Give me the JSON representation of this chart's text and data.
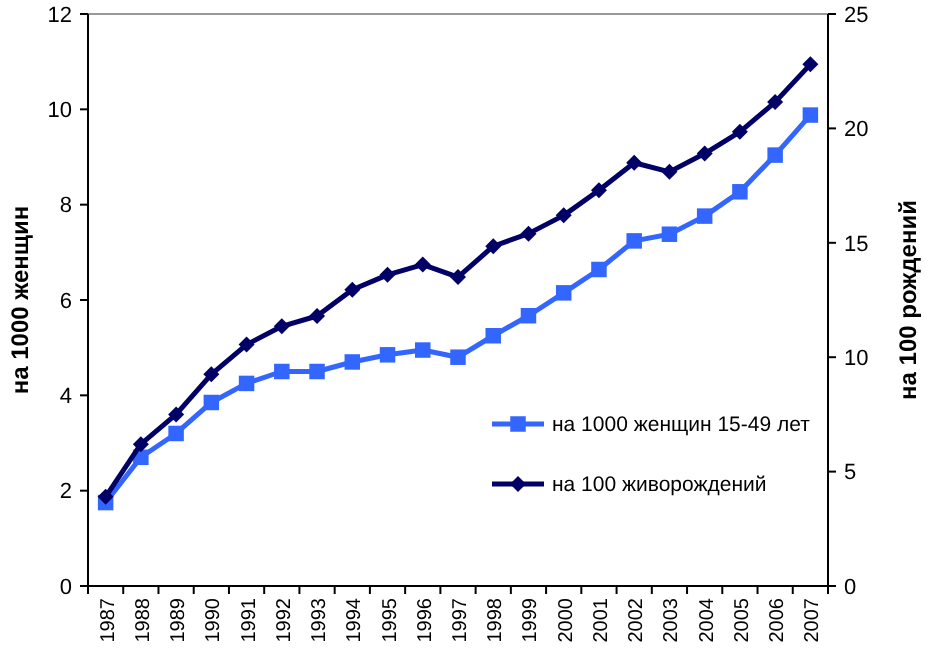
{
  "chart_data": {
    "type": "line",
    "xlabel": null,
    "ylabel": "на 1000  женщин",
    "y2label": "на 100 рождений",
    "categories": [
      "1987",
      "1988",
      "1989",
      "1990",
      "1991",
      "1992",
      "1993",
      "1994",
      "1995",
      "1996",
      "1997",
      "1998",
      "1999",
      "2000",
      "2001",
      "2002",
      "2003",
      "2004",
      "2005",
      "2006",
      "2007"
    ],
    "series": [
      {
        "name": "на 1000 женщин 15-49 лет",
        "color": "#3366ff",
        "marker": "square",
        "values": [
          1.75,
          2.7,
          3.2,
          3.85,
          4.25,
          4.5,
          4.5,
          4.7,
          4.85,
          4.95,
          4.8,
          5.25,
          5.67,
          6.15,
          6.64,
          7.24,
          7.38,
          7.76,
          8.27,
          9.04,
          9.88
        ]
      },
      {
        "name": "на 100 живорождений",
        "color": "#000066",
        "marker": "diamond",
        "axis": "y2",
        "values": [
          3.9,
          6.2,
          7.5,
          9.25,
          10.55,
          11.35,
          11.8,
          12.95,
          13.6,
          14.05,
          13.5,
          14.85,
          15.4,
          16.2,
          17.3,
          18.5,
          18.1,
          18.9,
          19.85,
          21.15,
          22.8
        ]
      }
    ],
    "ylim": [
      0,
      12
    ],
    "yticks": [
      0,
      2,
      4,
      6,
      8,
      10,
      12
    ],
    "y2lim": [
      0,
      25
    ],
    "y2ticks": [
      0,
      5,
      10,
      15,
      20,
      25
    ],
    "legend": "right",
    "grid": false
  }
}
